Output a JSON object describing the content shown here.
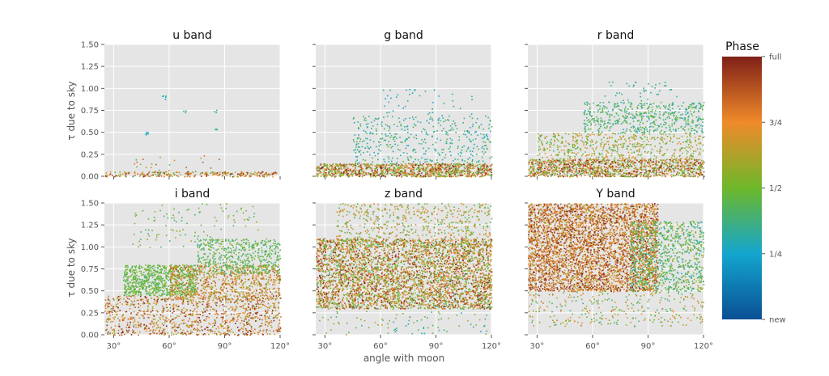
{
  "chart_data": {
    "type": "scatter",
    "xlabel": "angle with moon",
    "ylabel": "τ due to sky",
    "xlim": [
      25,
      120
    ],
    "ylim": [
      0,
      1.5
    ],
    "x_ticks": [
      30,
      60,
      90,
      120
    ],
    "x_tick_labels": [
      "30°",
      "60°",
      "90°",
      "120°"
    ],
    "y_ticks": [
      0,
      0.25,
      0.5,
      0.75,
      1.0,
      1.25,
      1.5
    ],
    "y_tick_labels": [
      "0.00",
      "0.25",
      "0.50",
      "0.75",
      "1.00",
      "1.25",
      "1.50"
    ],
    "grid": true,
    "colorbar": {
      "title": "Phase",
      "ticks": [
        0,
        0.25,
        0.5,
        0.75,
        1.0
      ],
      "tick_labels": [
        "new",
        "1/4",
        "1/2",
        "3/4",
        "full"
      ],
      "colors": [
        "#0a4f94",
        "#13a6cf",
        "#6eb82a",
        "#f08a2a",
        "#7e2018"
      ]
    },
    "panels": [
      {
        "title": "u band",
        "clusters": [
          {
            "x": [
              25,
              118
            ],
            "y": [
              0.0,
              0.06
            ],
            "phase": [
              0.5,
              1.0
            ],
            "n": 260
          },
          {
            "x": [
              40,
              90
            ],
            "y": [
              0.0,
              0.25
            ],
            "phase": [
              0.3,
              0.9
            ],
            "n": 30
          },
          {
            "x": [
              47,
              49
            ],
            "y": [
              0.47,
              0.52
            ],
            "phase": [
              0.25,
              0.3
            ],
            "n": 6
          },
          {
            "x": [
              56,
              58
            ],
            "y": [
              0.88,
              0.92
            ],
            "phase": [
              0.25,
              0.3
            ],
            "n": 5
          },
          {
            "x": [
              67,
              69
            ],
            "y": [
              0.73,
              0.76
            ],
            "phase": [
              0.3,
              0.35
            ],
            "n": 3
          },
          {
            "x": [
              84,
              86
            ],
            "y": [
              0.72,
              0.76
            ],
            "phase": [
              0.3,
              0.35
            ],
            "n": 3
          },
          {
            "x": [
              84,
              86
            ],
            "y": [
              0.52,
              0.56
            ],
            "phase": [
              0.3,
              0.35
            ],
            "n": 3
          }
        ]
      },
      {
        "title": "g band",
        "clusters": [
          {
            "x": [
              25,
              120
            ],
            "y": [
              0.0,
              0.15
            ],
            "phase": [
              0.4,
              1.0
            ],
            "n": 1100
          },
          {
            "x": [
              45,
              120
            ],
            "y": [
              0.15,
              0.7
            ],
            "phase": [
              0.25,
              0.45
            ],
            "n": 420
          },
          {
            "x": [
              60,
              110
            ],
            "y": [
              0.7,
              1.0
            ],
            "phase": [
              0.25,
              0.35
            ],
            "n": 40
          }
        ]
      },
      {
        "title": "r band",
        "clusters": [
          {
            "x": [
              25,
              120
            ],
            "y": [
              0.0,
              0.2
            ],
            "phase": [
              0.4,
              1.0
            ],
            "n": 1200
          },
          {
            "x": [
              30,
              120
            ],
            "y": [
              0.2,
              0.5
            ],
            "phase": [
              0.4,
              0.75
            ],
            "n": 520
          },
          {
            "x": [
              55,
              120
            ],
            "y": [
              0.5,
              0.85
            ],
            "phase": [
              0.3,
              0.5
            ],
            "n": 520
          },
          {
            "x": [
              65,
              110
            ],
            "y": [
              0.85,
              1.08
            ],
            "phase": [
              0.3,
              0.4
            ],
            "n": 40
          }
        ]
      },
      {
        "title": "i band",
        "clusters": [
          {
            "x": [
              25,
              120
            ],
            "y": [
              0.0,
              0.45
            ],
            "phase": [
              0.55,
              1.0
            ],
            "n": 1000
          },
          {
            "x": [
              35,
              75
            ],
            "y": [
              0.45,
              0.8
            ],
            "phase": [
              0.4,
              0.55
            ],
            "n": 800
          },
          {
            "x": [
              60,
              120
            ],
            "y": [
              0.4,
              0.8
            ],
            "phase": [
              0.55,
              0.9
            ],
            "n": 800
          },
          {
            "x": [
              75,
              120
            ],
            "y": [
              0.7,
              1.1
            ],
            "phase": [
              0.35,
              0.55
            ],
            "n": 500
          },
          {
            "x": [
              40,
              110
            ],
            "y": [
              1.0,
              1.5
            ],
            "phase": [
              0.35,
              0.6
            ],
            "n": 120
          }
        ]
      },
      {
        "title": "z band",
        "clusters": [
          {
            "x": [
              25,
              120
            ],
            "y": [
              0.3,
              1.1
            ],
            "phase": [
              0.4,
              1.0
            ],
            "n": 3800
          },
          {
            "x": [
              35,
              120
            ],
            "y": [
              1.0,
              1.5
            ],
            "phase": [
              0.4,
              0.8
            ],
            "n": 600
          },
          {
            "x": [
              25,
              120
            ],
            "y": [
              0.0,
              0.4
            ],
            "phase": [
              0.25,
              0.7
            ],
            "n": 120
          }
        ]
      },
      {
        "title": "Y band",
        "clusters": [
          {
            "x": [
              25,
              95
            ],
            "y": [
              0.5,
              1.5
            ],
            "phase": [
              0.6,
              1.0
            ],
            "n": 3800
          },
          {
            "x": [
              80,
              120
            ],
            "y": [
              0.5,
              1.3
            ],
            "phase": [
              0.3,
              0.6
            ],
            "n": 900
          },
          {
            "x": [
              25,
              120
            ],
            "y": [
              0.1,
              0.5
            ],
            "phase": [
              0.35,
              0.8
            ],
            "n": 300
          }
        ]
      }
    ]
  }
}
